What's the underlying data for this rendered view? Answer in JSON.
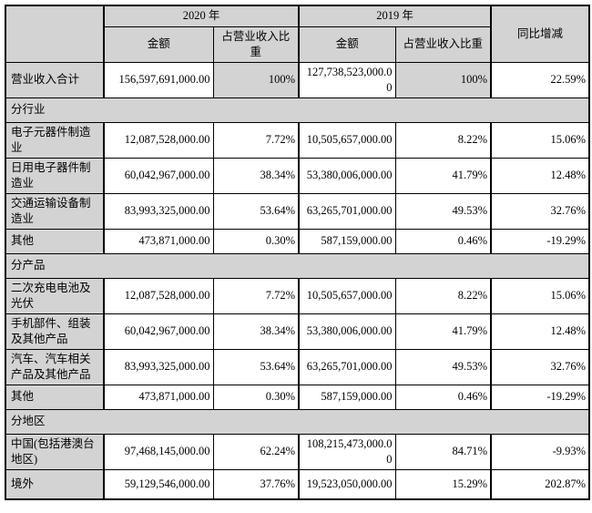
{
  "colors": {
    "shading": "#d3d3d3",
    "border": "#000000",
    "background": "#ffffff",
    "text": "#000000"
  },
  "table": {
    "header": {
      "year_2020": "2020 年",
      "year_2019": "2019 年",
      "amount": "金额",
      "ratio": "占营业收入比重",
      "yoy": "同比增减"
    },
    "rows": [
      {
        "type": "data",
        "label": "营业收入合计",
        "cells": [
          "156,597,691,000.00",
          "100%",
          "127,738,523,000.00",
          "100%",
          "22.59%"
        ],
        "shade_pct": true
      },
      {
        "type": "section",
        "label": "分行业"
      },
      {
        "type": "data",
        "label": "电子元器件制造业",
        "cells": [
          "12,087,528,000.00",
          "7.72%",
          "10,505,657,000.00",
          "8.22%",
          "15.06%"
        ]
      },
      {
        "type": "data",
        "label": "日用电子器件制造业",
        "cells": [
          "60,042,967,000.00",
          "38.34%",
          "53,380,006,000.00",
          "41.79%",
          "12.48%"
        ]
      },
      {
        "type": "data",
        "label": "交通运输设备制造业",
        "cells": [
          "83,993,325,000.00",
          "53.64%",
          "63,265,701,000.00",
          "49.53%",
          "32.76%"
        ]
      },
      {
        "type": "data",
        "label": "其他",
        "cells": [
          "473,871,000.00",
          "0.30%",
          "587,159,000.00",
          "0.46%",
          "-19.29%"
        ]
      },
      {
        "type": "section",
        "label": "分产品"
      },
      {
        "type": "data",
        "label": "二次充电电池及光伏",
        "cells": [
          "12,087,528,000.00",
          "7.72%",
          "10,505,657,000.00",
          "8.22%",
          "15.06%"
        ]
      },
      {
        "type": "data",
        "label": "手机部件、组装及其他产品",
        "cells": [
          "60,042,967,000.00",
          "38.34%",
          "53,380,006,000.00",
          "41.79%",
          "12.48%"
        ]
      },
      {
        "type": "data",
        "label": "汽车、汽车相关产品及其他产品",
        "cells": [
          "83,993,325,000.00",
          "53.64%",
          "63,265,701,000.00",
          "49.53%",
          "32.76%"
        ]
      },
      {
        "type": "data",
        "label": "其他",
        "cells": [
          "473,871,000.00",
          "0.30%",
          "587,159,000.00",
          "0.46%",
          "-19.29%"
        ]
      },
      {
        "type": "section",
        "label": "分地区"
      },
      {
        "type": "data",
        "label": "中国(包括港澳台地区)",
        "cells": [
          "97,468,145,000.00",
          "62.24%",
          "108,215,473,000.00",
          "84.71%",
          "-9.93%"
        ]
      },
      {
        "type": "data",
        "label": "境外",
        "cells": [
          "59,129,546,000.00",
          "37.76%",
          "19,523,050,000.00",
          "15.29%",
          "202.87%"
        ]
      }
    ]
  }
}
